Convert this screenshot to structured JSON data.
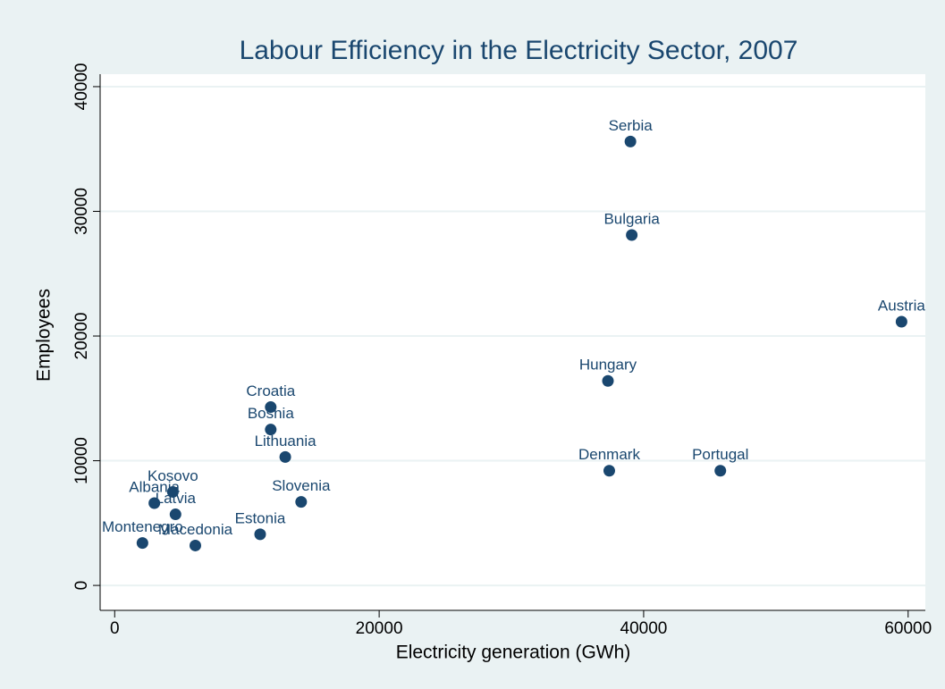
{
  "chart_data": {
    "type": "scatter",
    "title": "Labour Efficiency in the Electricity Sector, 2007",
    "x_label": "Electricity generation (GWh)",
    "y_label": "Employees",
    "point_labels": [
      "Serbia",
      "Bulgaria",
      "Austria",
      "Hungary",
      "Denmark",
      "Portugal",
      "Croatia",
      "Bosnia",
      "Lithuania",
      "Slovenia",
      "Estonia",
      "Kosovo",
      "Albania",
      "Latvia",
      "Montenegro",
      "Macedonia"
    ],
    "x": [
      39000,
      39100,
      59500,
      37300,
      37400,
      45800,
      11800,
      11800,
      12900,
      14100,
      11000,
      4400,
      3000,
      4600,
      2100,
      6100
    ],
    "values": [
      35600,
      28100,
      21150,
      16400,
      9200,
      9200,
      14300,
      12500,
      10300,
      6700,
      4100,
      7500,
      6600,
      5700,
      3400,
      3200
    ],
    "color": "#1a476f",
    "xlim": [
      -1100,
      61300
    ],
    "xticks": [
      0,
      20000,
      40000,
      60000
    ],
    "ylim": [
      -2000,
      41000
    ],
    "yticks": [
      0,
      10000,
      20000,
      30000,
      40000
    ],
    "grid": true
  }
}
